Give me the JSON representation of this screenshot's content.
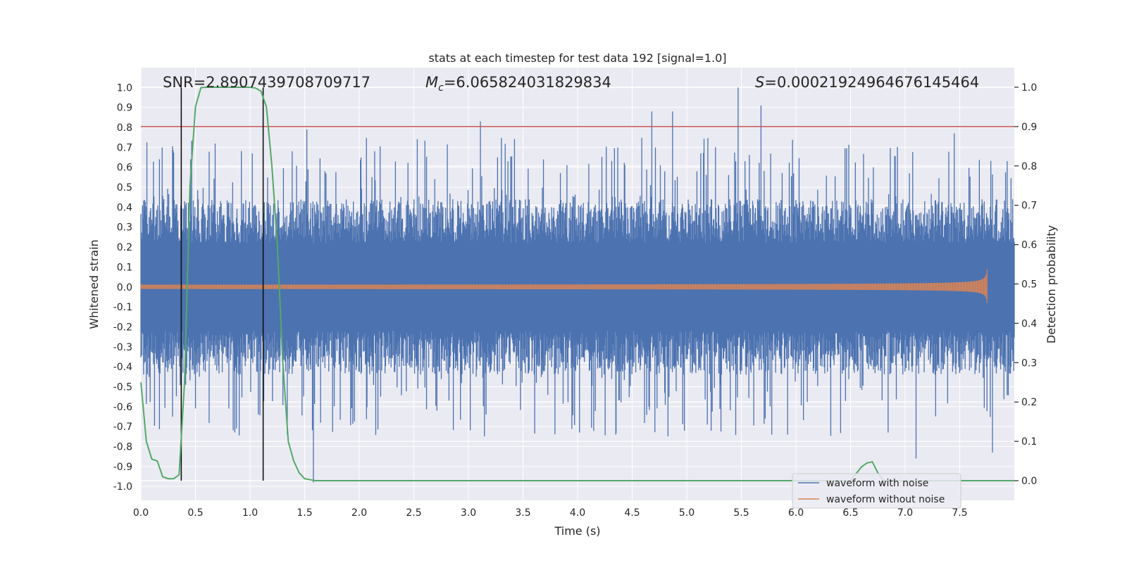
{
  "chart_data": {
    "type": "line",
    "title": "stats at each timestep for test data 192 [signal=1.0]",
    "xlabel": "Time (s)",
    "ylabel_left": "Whitened strain",
    "ylabel_right": "Detection probability",
    "xlim": [
      0.0,
      8.0
    ],
    "ylim_left": [
      -1.07,
      1.1
    ],
    "ylim_right": [
      -0.05,
      1.05
    ],
    "x_ticks": [
      "0.0",
      "0.5",
      "1.0",
      "1.5",
      "2.0",
      "2.5",
      "3.0",
      "3.5",
      "4.0",
      "4.5",
      "5.0",
      "5.5",
      "6.0",
      "6.5",
      "7.0",
      "7.5"
    ],
    "x_tick_values": [
      0.0,
      0.5,
      1.0,
      1.5,
      2.0,
      2.5,
      3.0,
      3.5,
      4.0,
      4.5,
      5.0,
      5.5,
      6.0,
      6.5,
      7.0,
      7.5
    ],
    "y_ticks_left": [
      "1.0",
      "0.9",
      "0.8",
      "0.7",
      "0.6",
      "0.5",
      "0.4",
      "0.3",
      "0.2",
      "0.1",
      "0.0",
      "-0.1",
      "-0.2",
      "-0.3",
      "-0.4",
      "-0.5",
      "-0.6",
      "-0.7",
      "-0.8",
      "-0.9",
      "-1.0"
    ],
    "y_tick_values_left": [
      1.0,
      0.9,
      0.8,
      0.7,
      0.6,
      0.5,
      0.4,
      0.3,
      0.2,
      0.1,
      0.0,
      -0.1,
      -0.2,
      -0.3,
      -0.4,
      -0.5,
      -0.6,
      -0.7,
      -0.8,
      -0.9,
      -1.0
    ],
    "y_ticks_right": [
      "1.0",
      "0.9",
      "0.8",
      "0.7",
      "0.6",
      "0.5",
      "0.4",
      "0.3",
      "0.2",
      "0.1",
      "0.0"
    ],
    "y_tick_values_right": [
      1.0,
      0.9,
      0.8,
      0.7,
      0.6,
      0.5,
      0.4,
      0.3,
      0.2,
      0.1,
      0.0
    ],
    "annotations": {
      "snr": "SNR=2.8907439708709717",
      "mc_symbol": "M",
      "mc_sub": "c",
      "mc_value": "=6.065824031829834",
      "s_symbol": "S",
      "s_value": "=0.00021924964676145464"
    },
    "threshold": {
      "value": 0.9,
      "axis": "right",
      "color": "#c44e52"
    },
    "vlines": [
      0.37,
      1.12
    ],
    "series": [
      {
        "name": "waveform with noise",
        "color": "#4c72b0",
        "kind": "noise",
        "axis": "left",
        "typical_range": [
          -0.4,
          0.4
        ],
        "max_peak": 1.0,
        "min_peak": -0.98
      },
      {
        "name": "waveform without noise",
        "color": "#dd8452",
        "kind": "chirp",
        "axis": "left",
        "merger_time": 7.75,
        "peak_amplitude": 0.09
      },
      {
        "name": "detection probability",
        "color": "#55a868",
        "axis": "right",
        "x": [
          0.0,
          0.05,
          0.1,
          0.15,
          0.2,
          0.25,
          0.3,
          0.35,
          0.4,
          0.45,
          0.5,
          0.55,
          0.6,
          0.7,
          0.8,
          0.9,
          1.0,
          1.05,
          1.1,
          1.15,
          1.2,
          1.25,
          1.3,
          1.35,
          1.4,
          1.45,
          1.5,
          1.6,
          2.0,
          3.0,
          4.0,
          5.0,
          6.0,
          6.4,
          6.5,
          6.6,
          6.65,
          6.7,
          6.75,
          6.8,
          7.0,
          8.0
        ],
        "y": [
          0.25,
          0.1,
          0.055,
          0.05,
          0.01,
          0.005,
          0.005,
          0.015,
          0.25,
          0.75,
          0.95,
          0.999,
          1.0,
          1.0,
          1.0,
          1.0,
          1.0,
          0.998,
          0.99,
          0.95,
          0.8,
          0.6,
          0.3,
          0.1,
          0.05,
          0.02,
          0.005,
          0.0,
          0.0,
          0.0,
          0.0,
          0.0,
          0.0,
          0.0,
          0.0,
          0.035,
          0.045,
          0.048,
          0.02,
          0.0,
          0.0,
          0.0
        ]
      }
    ],
    "legend": [
      "waveform with noise",
      "waveform without noise"
    ],
    "legend_position": "bottom-right",
    "grid": true,
    "background": "#eaeaf2"
  }
}
